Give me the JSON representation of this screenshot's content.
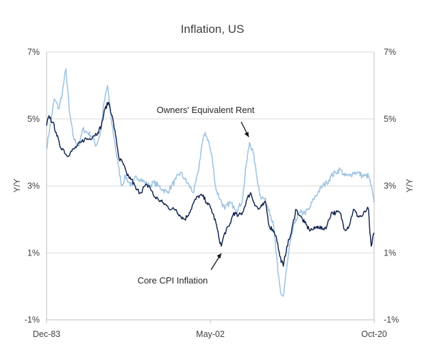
{
  "chart_data": {
    "type": "line",
    "title": "Inflation, US",
    "ylabel_left": "Y/Y",
    "ylabel_right": "Y/Y",
    "ylim": [
      -1,
      7
    ],
    "y_ticks": [
      -1,
      1,
      3,
      5,
      7
    ],
    "y_tick_labels": [
      "-1%",
      "1%",
      "3%",
      "5%",
      "7%"
    ],
    "x_tick_labels": [
      "Dec-83",
      "May-02",
      "Oct-20"
    ],
    "grid": "horizontal",
    "colors": {
      "Owners' Equivalent Rent": "#9fc4e2",
      "Core CPI Inflation": "#14244f"
    },
    "series": [
      {
        "name": "Owners' Equivalent Rent",
        "x": [
          1983.92,
          1984.3,
          1984.8,
          1985.3,
          1985.7,
          1986.1,
          1986.5,
          1986.9,
          1987.2,
          1987.6,
          1988.0,
          1988.5,
          1989.0,
          1989.5,
          1990.0,
          1990.4,
          1990.8,
          1991.2,
          1991.6,
          1992.0,
          1992.4,
          1992.8,
          1993.2,
          1993.6,
          1994.0,
          1994.5,
          1995.0,
          1995.5,
          1996.0,
          1996.5,
          1997.0,
          1997.5,
          1998.0,
          1998.5,
          1999.0,
          1999.5,
          2000.0,
          2000.5,
          2001.0,
          2001.4,
          2001.8,
          2002.2,
          2002.6,
          2003.0,
          2003.5,
          2004.0,
          2004.5,
          2005.0,
          2005.5,
          2006.0,
          2006.4,
          2006.8,
          2007.2,
          2007.6,
          2008.0,
          2008.5,
          2009.0,
          2009.5,
          2010.0,
          2010.3,
          2010.6,
          2011.0,
          2011.5,
          2012.0,
          2012.5,
          2013.0,
          2013.5,
          2014.0,
          2014.5,
          2015.0,
          2015.5,
          2016.0,
          2016.5,
          2017.0,
          2017.5,
          2018.0,
          2018.5,
          2019.0,
          2019.5,
          2019.9,
          2020.2,
          2020.5,
          2020.83
        ],
        "values": [
          4.1,
          4.8,
          5.6,
          5.3,
          5.8,
          6.5,
          5.2,
          4.5,
          4.3,
          4.2,
          4.7,
          4.6,
          4.5,
          4.2,
          4.6,
          5.5,
          6.0,
          5.0,
          4.3,
          3.6,
          3.0,
          3.3,
          3.1,
          3.0,
          3.3,
          3.2,
          3.1,
          3.0,
          3.1,
          3.0,
          2.9,
          2.8,
          3.0,
          3.2,
          3.4,
          3.2,
          3.0,
          2.8,
          3.4,
          4.2,
          4.6,
          4.3,
          3.8,
          2.9,
          2.6,
          2.3,
          2.5,
          2.4,
          2.3,
          2.6,
          3.6,
          4.3,
          4.0,
          3.3,
          2.7,
          2.6,
          2.3,
          1.8,
          0.4,
          -0.2,
          -0.3,
          0.6,
          1.5,
          2.0,
          2.2,
          2.2,
          2.3,
          2.6,
          2.8,
          3.0,
          3.1,
          3.3,
          3.4,
          3.5,
          3.3,
          3.3,
          3.4,
          3.4,
          3.3,
          3.3,
          3.3,
          3.0,
          2.5
        ]
      },
      {
        "name": "Core CPI Inflation",
        "x": [
          1983.92,
          1984.2,
          1984.6,
          1985.0,
          1985.4,
          1985.8,
          1986.2,
          1986.6,
          1987.0,
          1987.4,
          1987.8,
          1988.2,
          1988.7,
          1989.2,
          1989.7,
          1990.1,
          1990.5,
          1990.9,
          1991.3,
          1991.7,
          1992.1,
          1992.5,
          1993.0,
          1993.5,
          1994.0,
          1994.5,
          1995.0,
          1995.5,
          1996.0,
          1996.5,
          1997.0,
          1997.5,
          1998.0,
          1998.5,
          1999.0,
          1999.5,
          2000.0,
          2000.5,
          2001.0,
          2001.5,
          2002.0,
          2002.5,
          2003.0,
          2003.3,
          2003.6,
          2004.0,
          2004.5,
          2005.0,
          2005.5,
          2006.0,
          2006.5,
          2006.9,
          2007.3,
          2007.8,
          2008.2,
          2008.6,
          2009.0,
          2009.4,
          2009.8,
          2010.2,
          2010.6,
          2011.0,
          2011.5,
          2012.0,
          2012.5,
          2013.0,
          2013.5,
          2014.0,
          2014.5,
          2015.0,
          2015.5,
          2016.0,
          2016.5,
          2017.0,
          2017.5,
          2018.0,
          2018.5,
          2019.0,
          2019.5,
          2020.0,
          2020.2,
          2020.35,
          2020.5,
          2020.83
        ],
        "values": [
          4.8,
          5.1,
          4.9,
          4.6,
          4.2,
          4.1,
          3.9,
          4.0,
          4.1,
          4.2,
          4.3,
          4.4,
          4.4,
          4.5,
          4.6,
          4.8,
          5.3,
          5.5,
          5.1,
          4.5,
          3.8,
          3.7,
          3.3,
          3.2,
          2.9,
          2.8,
          3.0,
          3.0,
          2.7,
          2.6,
          2.5,
          2.4,
          2.3,
          2.3,
          2.1,
          2.0,
          2.2,
          2.5,
          2.7,
          2.7,
          2.5,
          2.3,
          1.9,
          1.5,
          1.2,
          1.6,
          1.8,
          2.2,
          2.1,
          2.2,
          2.6,
          2.8,
          2.5,
          2.3,
          2.4,
          2.5,
          1.8,
          1.7,
          1.5,
          0.9,
          0.6,
          1.2,
          1.6,
          2.3,
          2.1,
          1.9,
          1.7,
          1.7,
          1.8,
          1.7,
          1.8,
          2.2,
          2.2,
          2.2,
          1.7,
          1.8,
          2.3,
          2.1,
          2.1,
          2.3,
          2.3,
          1.6,
          1.2,
          1.6
        ]
      }
    ],
    "annotations": [
      "Owners' Equivalent Rent",
      "Core CPI Inflation"
    ]
  }
}
